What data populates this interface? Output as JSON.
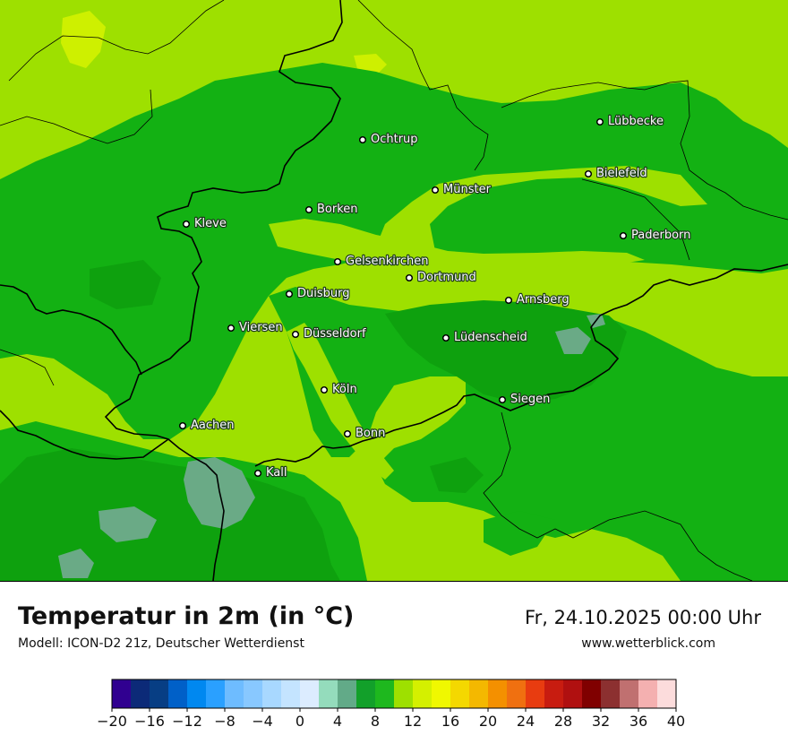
{
  "map": {
    "title": "Temperatur in 2m (in °C)",
    "model": "Modell: ICON-D2 21z, Deutscher Wetterdienst",
    "datetime": "Fr, 24.10.2025 00:00 Uhr",
    "website": "www.wetterblick.com",
    "cities": [
      {
        "name": "Lübbecke",
        "id": "luebbecke"
      },
      {
        "name": "Ochtrup",
        "id": "ochtrup"
      },
      {
        "name": "Bielefeld",
        "id": "bielefeld"
      },
      {
        "name": "Münster",
        "id": "muenster"
      },
      {
        "name": "Borken",
        "id": "borken"
      },
      {
        "name": "Kleve",
        "id": "kleve"
      },
      {
        "name": "Paderborn",
        "id": "paderborn"
      },
      {
        "name": "Gelsenkirchen",
        "id": "gelsenkirchen"
      },
      {
        "name": "Dortmund",
        "id": "dortmund"
      },
      {
        "name": "Duisburg",
        "id": "duisburg"
      },
      {
        "name": "Arnsberg",
        "id": "arnsberg"
      },
      {
        "name": "Viersen",
        "id": "viersen"
      },
      {
        "name": "Düsseldorf",
        "id": "duesseldorf"
      },
      {
        "name": "Lüdenscheid",
        "id": "luedenscheid"
      },
      {
        "name": "Köln",
        "id": "koeln"
      },
      {
        "name": "Siegen",
        "id": "siegen"
      },
      {
        "name": "Aachen",
        "id": "aachen"
      },
      {
        "name": "Bonn",
        "id": "bonn"
      },
      {
        "name": "Kall",
        "id": "kall"
      }
    ],
    "colors": {
      "temp_12_14": "#9ee000",
      "temp_10_12": "#13b113",
      "temp_8_10": "#0ea10e",
      "temp_6_8": "#6aaa86",
      "temp_14_16": "#cef000",
      "border": "#000000"
    }
  },
  "legend": {
    "min": -20,
    "max": 40,
    "step": 2,
    "tick_labels": [
      "−20",
      "−16",
      "−12",
      "−8",
      "−4",
      "0",
      "4",
      "8",
      "12",
      "16",
      "20",
      "24",
      "28",
      "32",
      "36",
      "40"
    ],
    "colors": [
      "#300090",
      "#0c2a78",
      "#073e84",
      "#0060c8",
      "#0088f0",
      "#2aa0ff",
      "#6ebcff",
      "#88c8ff",
      "#a8d8ff",
      "#c4e4ff",
      "#dcecff",
      "#94dcbc",
      "#62aa88",
      "#12a02a",
      "#1eb81e",
      "#9ee000",
      "#d4f000",
      "#f0f800",
      "#f4d800",
      "#f4b800",
      "#f49000",
      "#f07010",
      "#e83c10",
      "#c81c10",
      "#b01010",
      "#800000",
      "#8c3030",
      "#c07070",
      "#f4b0b0",
      "#fcdcdc"
    ]
  }
}
